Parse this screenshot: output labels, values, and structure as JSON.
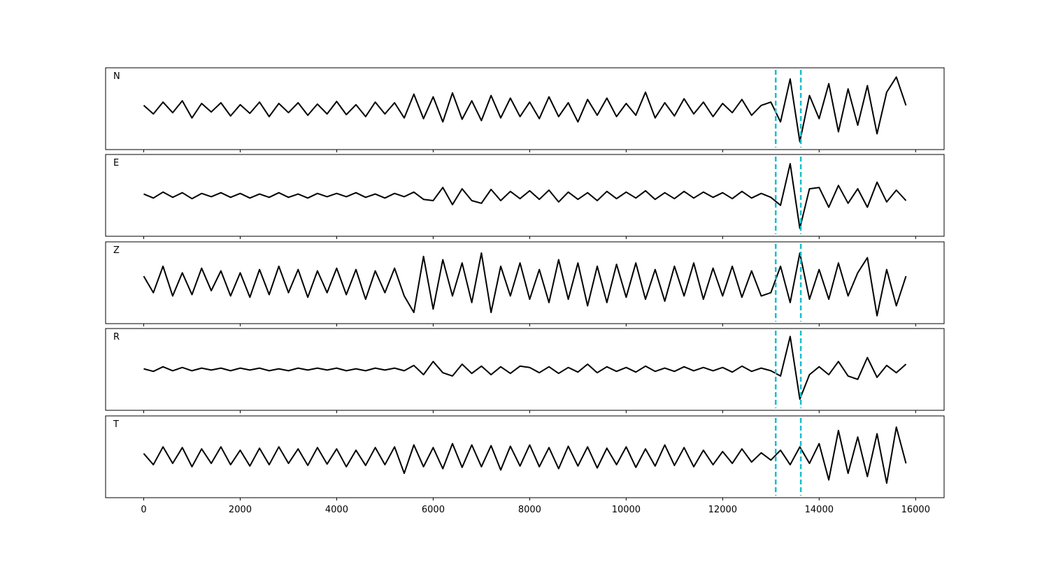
{
  "chart_data": {
    "type": "line",
    "xlim": [
      -790,
      16590
    ],
    "xticks": [
      0,
      2000,
      4000,
      6000,
      8000,
      10000,
      12000,
      14000,
      16000
    ],
    "line_color": "#000000",
    "markers": {
      "values": [
        13100,
        13620
      ],
      "color": "#17becf"
    },
    "x": [
      0,
      200,
      400,
      600,
      800,
      1000,
      1200,
      1400,
      1600,
      1800,
      2000,
      2200,
      2400,
      2600,
      2800,
      3000,
      3200,
      3400,
      3600,
      3800,
      4000,
      4200,
      4400,
      4600,
      4800,
      5000,
      5200,
      5400,
      5600,
      5800,
      6000,
      6200,
      6400,
      6600,
      6800,
      7000,
      7200,
      7400,
      7600,
      7800,
      8000,
      8200,
      8400,
      8600,
      8800,
      9000,
      9200,
      9400,
      9600,
      9800,
      10000,
      10200,
      10400,
      10600,
      10800,
      11000,
      11200,
      11400,
      11600,
      11800,
      12000,
      12200,
      12400,
      12600,
      12800,
      13000,
      13200,
      13400,
      13600,
      13800,
      14000,
      14200,
      14400,
      14600,
      14800,
      15000,
      15200,
      15400,
      15600,
      15800
    ],
    "panels": [
      {
        "label": "N",
        "ylim": [
          -62,
          62
        ],
        "values": [
          5,
          -8,
          10,
          -6,
          12,
          -14,
          8,
          -5,
          9,
          -11,
          6,
          -7,
          10,
          -12,
          8,
          -6,
          9,
          -10,
          7,
          -8,
          11,
          -9,
          6,
          -12,
          10,
          -8,
          9,
          -14,
          22,
          -15,
          18,
          -20,
          24,
          -16,
          12,
          -18,
          20,
          -14,
          16,
          -12,
          10,
          -15,
          18,
          -12,
          9,
          -20,
          14,
          -10,
          16,
          -12,
          8,
          -10,
          25,
          -14,
          9,
          -11,
          15,
          -8,
          10,
          -12,
          8,
          -6,
          14,
          -10,
          5,
          10,
          -20,
          45,
          -50,
          20,
          -15,
          38,
          -35,
          30,
          -25,
          35,
          -38,
          25,
          48,
          5
        ]
      },
      {
        "label": "E",
        "ylim": [
          -62,
          62
        ],
        "values": [
          2,
          -4,
          5,
          -3,
          4,
          -5,
          3,
          -2,
          4,
          -3,
          3,
          -4,
          2,
          -3,
          4,
          -3,
          2,
          -4,
          3,
          -2,
          3,
          -2,
          4,
          -3,
          2,
          -4,
          3,
          -2,
          5,
          -6,
          -8,
          12,
          -14,
          10,
          -8,
          -12,
          9,
          -8,
          6,
          -5,
          7,
          -6,
          8,
          -10,
          5,
          -6,
          4,
          -8,
          6,
          -5,
          5,
          -4,
          7,
          -6,
          4,
          -5,
          6,
          -4,
          5,
          -3,
          4,
          -5,
          6,
          -4,
          3,
          -3,
          -15,
          48,
          -50,
          10,
          12,
          -18,
          15,
          -12,
          10,
          -18,
          20,
          -10,
          8,
          -8
        ]
      },
      {
        "label": "Z",
        "ylim": [
          -62,
          62
        ],
        "values": [
          10,
          -15,
          25,
          -20,
          15,
          -18,
          22,
          -12,
          18,
          -20,
          15,
          -22,
          20,
          -18,
          25,
          -15,
          20,
          -22,
          18,
          -15,
          22,
          -18,
          20,
          -25,
          18,
          -15,
          22,
          -20,
          -45,
          40,
          -40,
          35,
          -20,
          30,
          -30,
          45,
          -45,
          25,
          -20,
          30,
          -25,
          20,
          -30,
          35,
          -25,
          30,
          -35,
          25,
          -30,
          28,
          -22,
          30,
          -25,
          20,
          -28,
          25,
          -20,
          30,
          -25,
          22,
          -20,
          25,
          -22,
          18,
          -20,
          -15,
          25,
          -30,
          45,
          -25,
          20,
          -25,
          30,
          -20,
          15,
          38,
          -50,
          20,
          -35,
          10
        ]
      },
      {
        "label": "R",
        "ylim": [
          -62,
          62
        ],
        "values": [
          1,
          -3,
          4,
          -2,
          3,
          -2,
          2,
          -1,
          2,
          -2,
          2,
          -1,
          2,
          -2,
          1,
          -2,
          2,
          -1,
          2,
          -1,
          2,
          -2,
          1,
          -2,
          2,
          -1,
          2,
          -2,
          6,
          -8,
          12,
          -5,
          -10,
          8,
          -6,
          5,
          -8,
          4,
          -6,
          5,
          3,
          -5,
          4,
          -6,
          3,
          -4,
          8,
          -5,
          4,
          -3,
          3,
          -4,
          5,
          -3,
          2,
          -3,
          4,
          -2,
          3,
          -2,
          3,
          -4,
          5,
          -3,
          2,
          -2,
          -10,
          50,
          -45,
          -8,
          4,
          -8,
          12,
          -10,
          -15,
          18,
          -12,
          6,
          -5,
          8
        ]
      },
      {
        "label": "T",
        "ylim": [
          -62,
          62
        ],
        "values": [
          5,
          -12,
          15,
          -10,
          14,
          -15,
          12,
          -10,
          15,
          -12,
          10,
          -14,
          13,
          -12,
          15,
          -10,
          12,
          -13,
          14,
          -11,
          12,
          -15,
          10,
          -13,
          14,
          -12,
          15,
          -25,
          18,
          -15,
          14,
          -18,
          20,
          -16,
          18,
          -15,
          17,
          -20,
          16,
          -14,
          18,
          -15,
          14,
          -18,
          16,
          -14,
          15,
          -17,
          13,
          -12,
          15,
          -16,
          12,
          -14,
          18,
          -13,
          14,
          -15,
          10,
          -12,
          8,
          -10,
          12,
          -8,
          6,
          -5,
          10,
          -12,
          15,
          -10,
          20,
          -35,
          40,
          -25,
          30,
          -30,
          35,
          -40,
          45,
          -10
        ]
      }
    ]
  }
}
